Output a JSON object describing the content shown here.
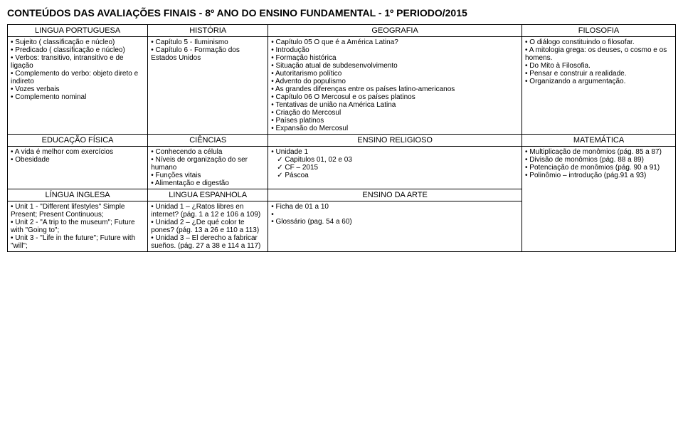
{
  "doc_title": "CONTEÚDOS DAS AVALIAÇÕES FINAIS  -  8º ANO DO ENSINO FUNDAMENTAL - 1º PERIODO/2015",
  "r1": {
    "c1h": "LINGUA PORTUGUESA",
    "c1": [
      "Sujeito ( classificação e núcleo)",
      "Predicado ( classificação e núcleo)",
      "Verbos: transitivo, intransitivo e de ligação",
      "Complemento do verbo: objeto direto e indireto",
      "Vozes verbais",
      "Complemento nominal"
    ],
    "c2h": "HISTÓRIA",
    "c2": [
      "Capítulo 5 - Iluminismo",
      "Capítulo 6 - Formação dos Estados Unidos"
    ],
    "c3h": "GEOGRAFIA",
    "c3": [
      "Capítulo 05  O que é a América Latina?",
      "Introdução",
      "Formação histórica",
      "Situação atual de subdesenvolvimento",
      "Autoritarismo político",
      "Advento do populismo",
      "As grandes diferenças entre os países latino-americanos",
      "Capítulo 06  O Mercosul e os países platinos",
      "Tentativas de união na América Latina",
      "Criação do Mercosul",
      "Países platinos",
      "Expansão do Mercosul"
    ],
    "c4h": "FILOSOFIA",
    "c4": [
      "O diálogo constituindo o filosofar.",
      "A mitologia grega: os deuses, o cosmo e os homens.",
      "Do Mito à Filosofia.",
      "Pensar e construir a realidade.",
      "Organizando a argumentação."
    ]
  },
  "r2": {
    "c1h": "EDUCAÇÃO FÍSICA",
    "c1": [
      "A vida é melhor com exercícios",
      "Obesidade"
    ],
    "c2h": "CIÊNCIAS",
    "c2": [
      "Conhecendo a célula",
      "Níveis de organização do ser humano",
      "Funções vitais",
      "Alimentação e digestão"
    ],
    "c3h": "ENSINO RELIGIOSO",
    "c3a": [
      "Unidade 1"
    ],
    "c3b": [
      "Capitulos  01, 02 e 03",
      "CF – 2015",
      "Páscoa"
    ],
    "c4h": "MATEMÁTICA",
    "c4": [
      "Multiplicação de monômios (pág. 85 a 87)",
      "Divisão de monômios (pág. 88 a 89)",
      "Potenciação  de monômios (pág. 90 a 91)",
      "Polinômio – introdução (pág.91 a 93)"
    ]
  },
  "r3": {
    "c1h": "LÍNGUA INGLESA",
    "c1": [
      "Unit 1 - \"Different lifestyles\" Simple Present; Present Continuous;",
      "Unit 2 - \"A trip to the museum\"; Future with \"Going to\";",
      "Unit 3 - \"Life in the future\"; Future with \"will\";"
    ],
    "c2h": "LINGUA ESPANHOLA",
    "c2": [
      "Unidad 1 – ¿Ratos libres en internet? (pág. 1 a 12 e 106 a 109)",
      "Unidad 2 – ¿De qué color te pones? (pág. 13 a 26 e 110 a 113)",
      "Unidad 3 – El derecho a fabricar sueños. (pág. 27 a 38 e 114 a 117)"
    ],
    "c3h": "ENSINO DA ARTE",
    "c3": [
      "Ficha de 01 a 10",
      "",
      "Glossário (pag. 54 a 60)"
    ]
  }
}
